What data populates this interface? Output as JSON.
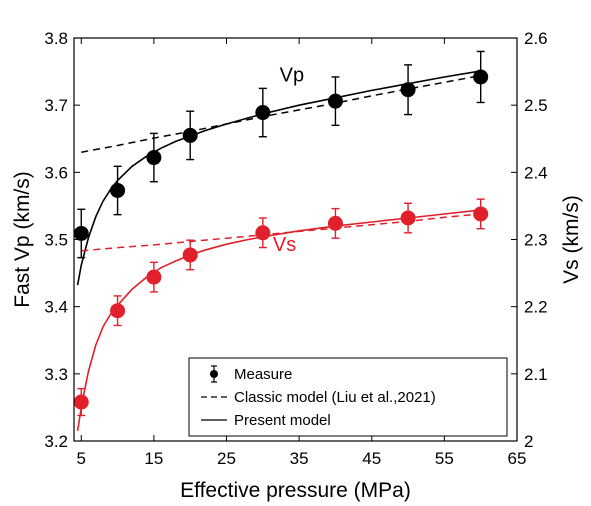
{
  "chart_data": {
    "type": "scatter",
    "x_axis": {
      "label": "Effective pressure (MPa)",
      "range": [
        4,
        65
      ],
      "ticks": [
        5,
        15,
        25,
        35,
        45,
        55,
        65
      ],
      "tick_labels": [
        "5",
        "15",
        "25",
        "35",
        "45",
        "55",
        "65"
      ]
    },
    "y_axis_left": {
      "label": "Fast Vp (km/s)",
      "range": [
        3.2,
        3.8
      ],
      "ticks": [
        3.2,
        3.3,
        3.4,
        3.5,
        3.6,
        3.7,
        3.8
      ],
      "tick_labels": [
        "3.2",
        "3.3",
        "3.4",
        "3.5",
        "3.6",
        "3.7",
        "3.8"
      ]
    },
    "y_axis_right": {
      "label": "Vs (km/s)",
      "range": [
        2.0,
        2.6
      ],
      "ticks": [
        2.0,
        2.1,
        2.2,
        2.3,
        2.4,
        2.5,
        2.6
      ],
      "tick_labels": [
        "2",
        "2.1",
        "2.2",
        "2.3",
        "2.4",
        "2.5",
        "2.6"
      ]
    },
    "series": [
      {
        "name": "Vp",
        "axis": "left",
        "color": "#000000",
        "label_position": {
          "x": 34,
          "y": 3.735
        },
        "measure": {
          "x": [
            5,
            10,
            15,
            20,
            30,
            40,
            50,
            60
          ],
          "y": [
            3.509,
            3.573,
            3.622,
            3.655,
            3.689,
            3.706,
            3.723,
            3.742
          ],
          "error": [
            0.036,
            0.036,
            0.036,
            0.036,
            0.036,
            0.036,
            0.037,
            0.038
          ]
        },
        "classic_model": {
          "x": [
            5,
            10,
            15,
            20,
            25,
            30,
            35,
            40,
            45,
            50,
            55,
            60
          ],
          "y": [
            3.63,
            3.64,
            3.651,
            3.661,
            3.672,
            3.683,
            3.693,
            3.703,
            3.714,
            3.724,
            3.734,
            3.744
          ]
        },
        "present_model": {
          "x": [
            4.5,
            5,
            6,
            7,
            8,
            9,
            10,
            12,
            14,
            16,
            18,
            20,
            22,
            25,
            28,
            30,
            35,
            40,
            45,
            50,
            55,
            60
          ],
          "y": [
            3.432,
            3.462,
            3.503,
            3.534,
            3.557,
            3.574,
            3.588,
            3.609,
            3.624,
            3.636,
            3.646,
            3.654,
            3.662,
            3.672,
            3.681,
            3.687,
            3.7,
            3.711,
            3.722,
            3.732,
            3.742,
            3.751
          ]
        }
      },
      {
        "name": "Vs",
        "axis": "right",
        "color": "#e0202a",
        "label_position": {
          "x": 33,
          "y": 2.283
        },
        "measure": {
          "x": [
            5,
            10,
            15,
            20,
            30,
            40,
            50,
            60
          ],
          "y": [
            2.058,
            2.194,
            2.244,
            2.277,
            2.31,
            2.324,
            2.332,
            2.338
          ],
          "error": [
            0.02,
            0.022,
            0.022,
            0.022,
            0.022,
            0.022,
            0.022,
            0.022
          ]
        },
        "classic_model": {
          "x": [
            5,
            10,
            15,
            20,
            25,
            30,
            35,
            40,
            45,
            50,
            55,
            60
          ],
          "y": [
            2.283,
            2.288,
            2.292,
            2.297,
            2.302,
            2.307,
            2.312,
            2.317,
            2.322,
            2.327,
            2.333,
            2.338
          ]
        },
        "present_model": {
          "x": [
            4.5,
            5,
            5.5,
            6,
            7,
            8,
            9,
            10,
            12,
            14,
            16,
            18,
            20,
            22,
            25,
            28,
            30,
            35,
            40,
            45,
            50,
            55,
            60
          ],
          "y": [
            2.015,
            2.05,
            2.078,
            2.104,
            2.143,
            2.17,
            2.188,
            2.202,
            2.226,
            2.244,
            2.258,
            2.268,
            2.277,
            2.284,
            2.293,
            2.3,
            2.304,
            2.313,
            2.32,
            2.326,
            2.332,
            2.338,
            2.344
          ]
        }
      }
    ],
    "legend": {
      "position": "bottom-right",
      "entries": [
        {
          "label": "Measure",
          "style": "marker-errorbar"
        },
        {
          "label": "Classic model (Liu et al.,2021)",
          "style": "dashed"
        },
        {
          "label": "Present model",
          "style": "solid"
        }
      ]
    },
    "grid": false
  }
}
